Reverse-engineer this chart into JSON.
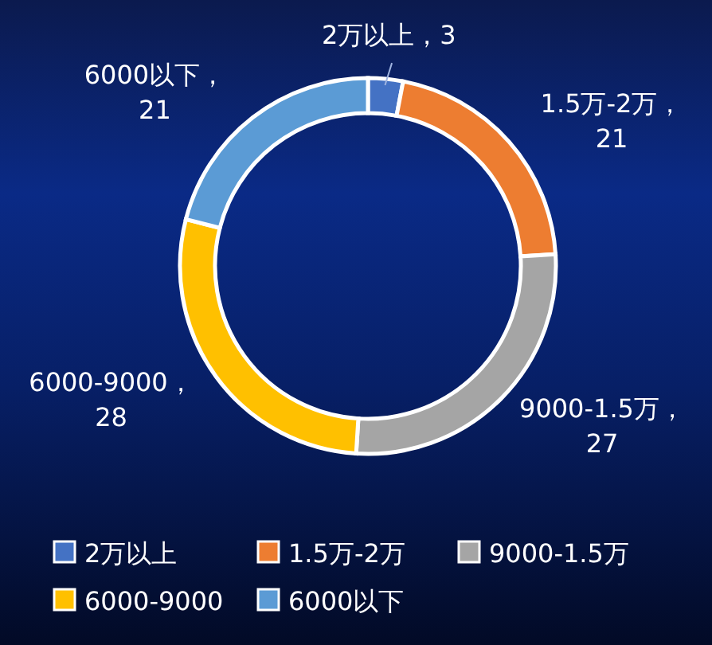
{
  "chart_data": {
    "type": "donut",
    "categories": [
      "2万以上",
      "1.5万-2万",
      "9000-1.5万",
      "6000-9000",
      "6000以下"
    ],
    "values": [
      3,
      21,
      27,
      28,
      21
    ],
    "colors": [
      "#4472c4",
      "#ed7d31",
      "#a5a5a5",
      "#ffc000",
      "#5b9bd5"
    ],
    "value_labels": [
      "2万以上，3",
      "1.5万-2万，21",
      "9000-1.5万，27",
      "6000-9000，28",
      "6000以下，21"
    ],
    "legend": "bottom"
  }
}
